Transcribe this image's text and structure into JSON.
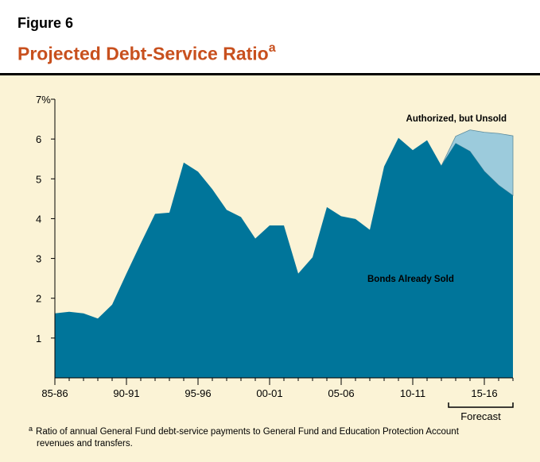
{
  "figure": {
    "label": "Figure 6",
    "title": "Projected Debt-Service Ratio",
    "title_superscript": "a"
  },
  "footnote": {
    "marker": "a",
    "text_line1": "Ratio of annual General Fund debt-service payments to General Fund and Education Protection Account",
    "text_line2": "revenues and transfers."
  },
  "colors": {
    "background": "#fbf3d6",
    "sold_fill": "#00759a",
    "unsold_fill": "#9ccbdc",
    "title": "#c8501e"
  },
  "chart_data": {
    "type": "area",
    "x_index_start": 0,
    "x_index_end": 32,
    "x_tick_labels": [
      {
        "index": 0,
        "label": "85-86"
      },
      {
        "index": 5,
        "label": "90-91"
      },
      {
        "index": 10,
        "label": "95-96"
      },
      {
        "index": 15,
        "label": "00-01"
      },
      {
        "index": 20,
        "label": "05-06"
      },
      {
        "index": 25,
        "label": "10-11"
      },
      {
        "index": 30,
        "label": "15-16"
      }
    ],
    "y_ticks": [
      {
        "value": 1,
        "label": "1"
      },
      {
        "value": 2,
        "label": "2"
      },
      {
        "value": 3,
        "label": "3"
      },
      {
        "value": 4,
        "label": "4"
      },
      {
        "value": 5,
        "label": "5"
      },
      {
        "value": 6,
        "label": "6"
      },
      {
        "value": 7,
        "label": "7%"
      }
    ],
    "ylim": [
      0,
      7
    ],
    "y_unit": "%",
    "series": [
      {
        "name": "Bonds Already Sold",
        "values": [
          1.62,
          1.66,
          1.62,
          1.49,
          1.84,
          2.62,
          3.38,
          4.12,
          4.15,
          5.41,
          5.18,
          4.74,
          4.22,
          4.04,
          3.5,
          3.83,
          3.83,
          2.62,
          3.03,
          4.29,
          4.06,
          3.99,
          3.72,
          5.31,
          6.03,
          5.72,
          5.97,
          5.33,
          5.89,
          5.69,
          5.19,
          4.84,
          4.58
        ]
      },
      {
        "name": "Authorized, but Unsold",
        "start_index": 27,
        "totals": [
          5.33,
          6.07,
          6.23,
          6.17,
          6.14,
          6.08
        ]
      }
    ],
    "annotations": {
      "sold_label": "Bonds Already Sold",
      "unsold_label": "Authorized, but Unsold",
      "forecast_label": "Forecast",
      "forecast_start_index": 27.5,
      "forecast_end_index": 32
    }
  }
}
